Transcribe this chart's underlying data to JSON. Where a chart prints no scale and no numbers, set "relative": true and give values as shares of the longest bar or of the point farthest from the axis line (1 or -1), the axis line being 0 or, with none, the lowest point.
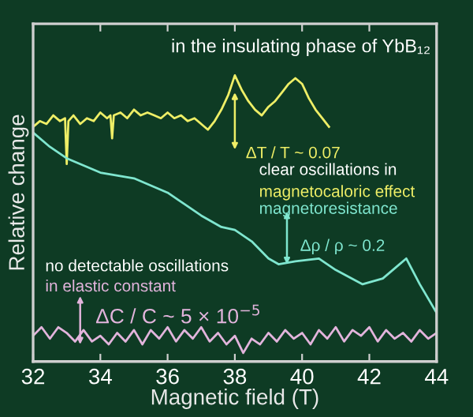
{
  "chart_data": {
    "type": "line",
    "title": "in the insulating phase of YbB₁₂",
    "xlabel": "Magnetic field (T)",
    "ylabel": "Relative change",
    "relative": true,
    "xlim": [
      32,
      44
    ],
    "xticks": [
      32,
      34,
      36,
      38,
      40,
      42,
      44
    ],
    "grid": false,
    "marker": "none",
    "line_style": "solid",
    "series": [
      {
        "name": "magnetocaloric effect",
        "color": "#eeee66",
        "x": [
          32.0,
          32.2,
          32.4,
          32.6,
          32.8,
          32.95,
          33.0,
          33.05,
          33.2,
          33.4,
          33.6,
          33.8,
          34.0,
          34.2,
          34.3,
          34.35,
          34.4,
          34.6,
          34.8,
          35.0,
          35.2,
          35.4,
          35.6,
          35.8,
          36.0,
          36.2,
          36.4,
          36.6,
          36.8,
          37.0,
          37.2,
          37.4,
          37.6,
          37.8,
          38.0,
          38.2,
          38.4,
          38.6,
          38.8,
          39.0,
          39.2,
          39.4,
          39.6,
          39.8,
          40.0,
          40.2,
          40.4,
          40.6,
          40.8
        ],
        "values": [
          0.82,
          0.84,
          0.83,
          0.86,
          0.84,
          0.85,
          0.69,
          0.84,
          0.86,
          0.83,
          0.85,
          0.84,
          0.87,
          0.85,
          0.86,
          0.78,
          0.86,
          0.87,
          0.85,
          0.88,
          0.86,
          0.87,
          0.86,
          0.85,
          0.87,
          0.85,
          0.86,
          0.84,
          0.85,
          0.83,
          0.81,
          0.84,
          0.88,
          0.93,
          1.0,
          0.95,
          0.91,
          0.88,
          0.86,
          0.89,
          0.91,
          0.94,
          0.97,
          0.99,
          0.97,
          0.92,
          0.88,
          0.85,
          0.82
        ]
      },
      {
        "name": "magnetoresistance",
        "color": "#7fe6cf",
        "x": [
          32,
          32.5,
          33,
          34,
          35,
          36,
          36.5,
          37,
          37.6,
          38,
          38.5,
          39,
          39.3,
          39.8,
          40.5,
          41,
          41.8,
          42.4,
          43.1,
          43.5,
          44
        ],
        "values": [
          0.8,
          0.75,
          0.71,
          0.66,
          0.64,
          0.59,
          0.55,
          0.51,
          0.47,
          0.46,
          0.42,
          0.36,
          0.34,
          0.35,
          0.36,
          0.32,
          0.27,
          0.29,
          0.36,
          0.27,
          0.17
        ]
      },
      {
        "name": "in elastic constant",
        "color": "#e2b4dc",
        "x": [
          32,
          32.25,
          32.5,
          32.75,
          33,
          33.25,
          33.5,
          33.75,
          34,
          34.25,
          34.5,
          34.75,
          35,
          35.25,
          35.5,
          35.75,
          36,
          36.25,
          36.5,
          36.75,
          37,
          37.25,
          37.5,
          37.75,
          38,
          38.25,
          38.5,
          38.75,
          39,
          39.25,
          39.5,
          39.75,
          40,
          40.25,
          40.5,
          40.75,
          41,
          41.25,
          41.5,
          41.75,
          42,
          42.25,
          42.5,
          42.75,
          43,
          43.25,
          43.5,
          43.75,
          44
        ],
        "values": [
          0.09,
          0.12,
          0.08,
          0.12,
          0.1,
          0.07,
          0.11,
          0.07,
          0.09,
          0.06,
          0.1,
          0.07,
          0.11,
          0.06,
          0.11,
          0.08,
          0.12,
          0.07,
          0.11,
          0.08,
          0.12,
          0.07,
          0.1,
          0.06,
          0.09,
          0.03,
          0.08,
          0.06,
          0.1,
          0.07,
          0.11,
          0.08,
          0.1,
          0.06,
          0.11,
          0.08,
          0.12,
          0.07,
          0.11,
          0.09,
          0.12,
          0.07,
          0.11,
          0.08,
          0.1,
          0.07,
          0.11,
          0.08,
          0.1
        ]
      }
    ],
    "annotations": [
      {
        "text": "ΔT / T ~ 0.07",
        "x": 38,
        "y": 0.94
      },
      {
        "text": "Δρ / ρ ~ 0.2",
        "x": 39.55,
        "y": 0.34
      },
      {
        "text": "ΔC / C ~ 5 × 10$^{−5}$",
        "x": 33.4,
        "y": 0.06
      },
      "clear oscillations in",
      "no detectable oscillations"
    ]
  }
}
